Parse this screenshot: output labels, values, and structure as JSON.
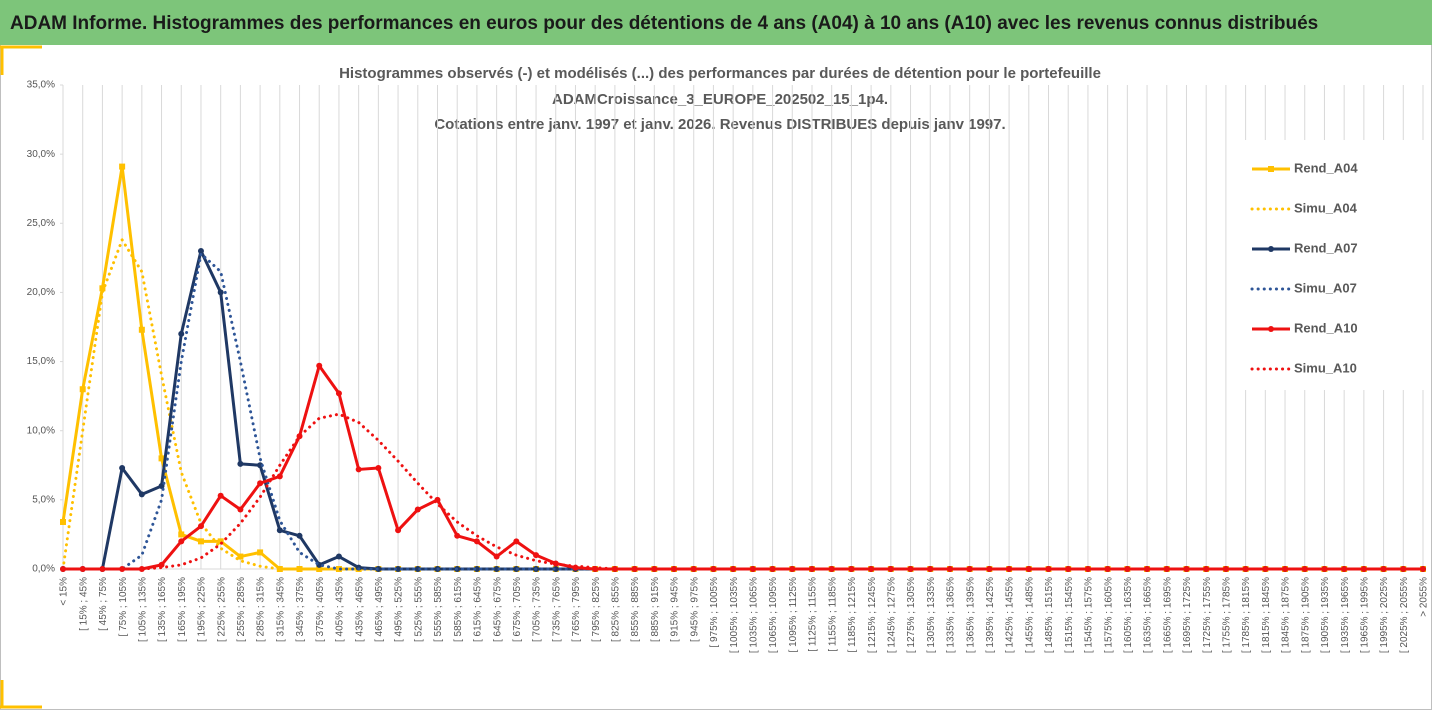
{
  "header": {
    "title": "ADAM Informe. Histogrammes des performances en euros pour des détentions de 4 ans (A04) à 10 ans (A10) avec les revenus connus distribués"
  },
  "chart_data": {
    "type": "line",
    "title": [
      "Histogrammes observés (-) et modélisés (...) des performances par durées de détention pour le portefeuille",
      "ADAMCroissance_3_EUROPE_202502_15_1p4.",
      "Cotations entre janv. 1997 et janv. 2026. Revenus DISTRIBUES depuis janv 1997."
    ],
    "categories": [
      "< 15%",
      "[ 15% ; 45%",
      "[ 45% ; 75%",
      "[ 75% ; 105%",
      "[ 105% ; 135%",
      "[ 135% ; 165%",
      "[ 165% ; 195%",
      "[ 195% ; 225%",
      "[ 225% ; 255%",
      "[ 255% ; 285%",
      "[ 285% ; 315%",
      "[ 315% ; 345%",
      "[ 345% ; 375%",
      "[ 375% ; 405%",
      "[ 405% ; 435%",
      "[ 435% ; 465%",
      "[ 465% ; 495%",
      "[ 495% ; 525%",
      "[ 525% ; 555%",
      "[ 555% ; 585%",
      "[ 585% ; 615%",
      "[ 615% ; 645%",
      "[ 645% ; 675%",
      "[ 675% ; 705%",
      "[ 705% ; 735%",
      "[ 735% ; 765%",
      "[ 765% ; 795%",
      "[ 795% ; 825%",
      "[ 825% ; 855%",
      "[ 855% ; 885%",
      "[ 885% ; 915%",
      "[ 915% ; 945%",
      "[ 945% ; 975%",
      "[ 975% ; 1005%",
      "[ 1005% ; 1035%",
      "[ 1035% ; 1065%",
      "[ 1065% ; 1095%",
      "[ 1095% ; 1125%",
      "[ 1125% ; 1155%",
      "[ 1155% ; 1185%",
      "[ 1185% ; 1215%",
      "[ 1215% ; 1245%",
      "[ 1245% ; 1275%",
      "[ 1275% ; 1305%",
      "[ 1305% ; 1335%",
      "[ 1335% ; 1365%",
      "[ 1365% ; 1395%",
      "[ 1395% ; 1425%",
      "[ 1425% ; 1455%",
      "[ 1455% ; 1485%",
      "[ 1485% ; 1515%",
      "[ 1515% ; 1545%",
      "[ 1545% ; 1575%",
      "[ 1575% ; 1605%",
      "[ 1605% ; 1635%",
      "[ 1635% ; 1665%",
      "[ 1665% ; 1695%",
      "[ 1695% ; 1725%",
      "[ 1725% ; 1755%",
      "[ 1755% ; 1785%",
      "[ 1785% ; 1815%",
      "[ 1815% ; 1845%",
      "[ 1845% ; 1875%",
      "[ 1875% ; 1905%",
      "[ 1905% ; 1935%",
      "[ 1935% ; 1965%",
      "[ 1965% ; 1995%",
      "[ 1995% ; 2025%",
      "[ 2025% ; 2055%",
      "> 2055%"
    ],
    "series": [
      {
        "name": "Rend_A04",
        "color": "#ffc000",
        "marker": "square",
        "dash": false,
        "values": [
          3.4,
          13.0,
          20.3,
          29.1,
          17.3,
          8.0,
          2.5,
          2.0,
          2.0,
          0.9,
          1.2,
          0,
          0,
          0,
          0,
          0,
          0,
          0,
          0,
          0,
          0,
          0,
          0,
          0,
          0,
          0,
          0,
          0,
          0,
          0,
          0,
          0,
          0,
          0,
          0,
          0,
          0,
          0,
          0,
          0,
          0,
          0,
          0,
          0,
          0,
          0,
          0,
          0,
          0,
          0,
          0,
          0,
          0,
          0,
          0,
          0,
          0,
          0,
          0,
          0,
          0,
          0,
          0,
          0,
          0,
          0,
          0,
          0,
          0,
          0
        ]
      },
      {
        "name": "Simu_A04",
        "color": "#ffc000",
        "marker": null,
        "dash": true,
        "values": [
          0,
          10,
          20,
          23.8,
          21.5,
          14,
          7,
          3.3,
          1.5,
          0.6,
          0.2,
          0,
          0,
          0,
          0,
          0,
          0,
          0,
          0,
          0,
          0,
          0,
          0,
          0,
          0,
          0,
          0,
          0,
          0,
          0,
          0,
          0,
          0,
          0,
          0,
          0,
          0,
          0,
          0,
          0,
          0,
          0,
          0,
          0,
          0,
          0,
          0,
          0,
          0,
          0,
          0,
          0,
          0,
          0,
          0,
          0,
          0,
          0,
          0,
          0,
          0,
          0,
          0,
          0,
          0,
          0,
          0,
          0,
          0,
          0
        ]
      },
      {
        "name": "Rend_A07",
        "color": "#1f3864",
        "marker": "circle",
        "dash": false,
        "values": [
          0,
          0,
          0,
          7.3,
          5.4,
          6.0,
          17.0,
          23.0,
          20.0,
          7.6,
          7.5,
          2.8,
          2.4,
          0.3,
          0.9,
          0.1,
          0,
          0,
          0,
          0,
          0,
          0,
          0,
          0,
          0,
          0,
          0,
          0,
          0,
          0,
          0,
          0,
          0,
          0,
          0,
          0,
          0,
          0,
          0,
          0,
          0,
          0,
          0,
          0,
          0,
          0,
          0,
          0,
          0,
          0,
          0,
          0,
          0,
          0,
          0,
          0,
          0,
          0,
          0,
          0,
          0,
          0,
          0,
          0,
          0,
          0,
          0,
          0,
          0,
          0
        ]
      },
      {
        "name": "Simu_A07",
        "color": "#2e5597",
        "marker": null,
        "dash": true,
        "values": [
          0,
          0,
          0,
          0,
          1,
          5,
          15,
          22.8,
          21.5,
          15,
          8,
          3.5,
          1.2,
          0.3,
          0,
          0,
          0,
          0,
          0,
          0,
          0,
          0,
          0,
          0,
          0,
          0,
          0,
          0,
          0,
          0,
          0,
          0,
          0,
          0,
          0,
          0,
          0,
          0,
          0,
          0,
          0,
          0,
          0,
          0,
          0,
          0,
          0,
          0,
          0,
          0,
          0,
          0,
          0,
          0,
          0,
          0,
          0,
          0,
          0,
          0,
          0,
          0,
          0,
          0,
          0,
          0,
          0,
          0,
          0,
          0
        ]
      },
      {
        "name": "Rend_A10",
        "color": "#ee1111",
        "marker": "circle",
        "dash": false,
        "values": [
          0,
          0,
          0,
          0,
          0,
          0.3,
          2.0,
          3.1,
          5.3,
          4.3,
          6.2,
          6.7,
          9.6,
          14.7,
          12.7,
          7.2,
          7.3,
          2.8,
          4.3,
          5.0,
          2.4,
          2.0,
          0.9,
          2.0,
          1.0,
          0.4,
          0.1,
          0,
          0,
          0,
          0,
          0,
          0,
          0,
          0,
          0,
          0,
          0,
          0,
          0,
          0,
          0,
          0,
          0,
          0,
          0,
          0,
          0,
          0,
          0,
          0,
          0,
          0,
          0,
          0,
          0,
          0,
          0,
          0,
          0,
          0,
          0,
          0,
          0,
          0,
          0,
          0,
          0,
          0,
          0
        ]
      },
      {
        "name": "Simu_A10",
        "color": "#ee1111",
        "marker": null,
        "dash": true,
        "values": [
          0,
          0,
          0,
          0,
          0,
          0.1,
          0.3,
          0.8,
          1.8,
          3.3,
          5.2,
          7.5,
          9.6,
          10.9,
          11.2,
          10.6,
          9.3,
          7.8,
          6.2,
          4.7,
          3.4,
          2.4,
          1.6,
          1.0,
          0.6,
          0.35,
          0.2,
          0.1,
          0,
          0,
          0,
          0,
          0,
          0,
          0,
          0,
          0,
          0,
          0,
          0,
          0,
          0,
          0,
          0,
          0,
          0,
          0,
          0,
          0,
          0,
          0,
          0,
          0,
          0,
          0,
          0,
          0,
          0,
          0,
          0,
          0,
          0,
          0,
          0,
          0,
          0,
          0,
          0,
          0,
          0
        ]
      }
    ],
    "ylim": [
      0,
      35
    ],
    "yticks": [
      {
        "value": 0,
        "label": "0,0%"
      },
      {
        "value": 5,
        "label": "5,0%"
      },
      {
        "value": 10,
        "label": "10,0%"
      },
      {
        "value": 15,
        "label": "15,0%"
      },
      {
        "value": 20,
        "label": "20,0%"
      },
      {
        "value": 25,
        "label": "25,0%"
      },
      {
        "value": 30,
        "label": "30,0%"
      },
      {
        "value": 35,
        "label": "35,0%"
      }
    ],
    "grid": true,
    "legend": "right"
  }
}
